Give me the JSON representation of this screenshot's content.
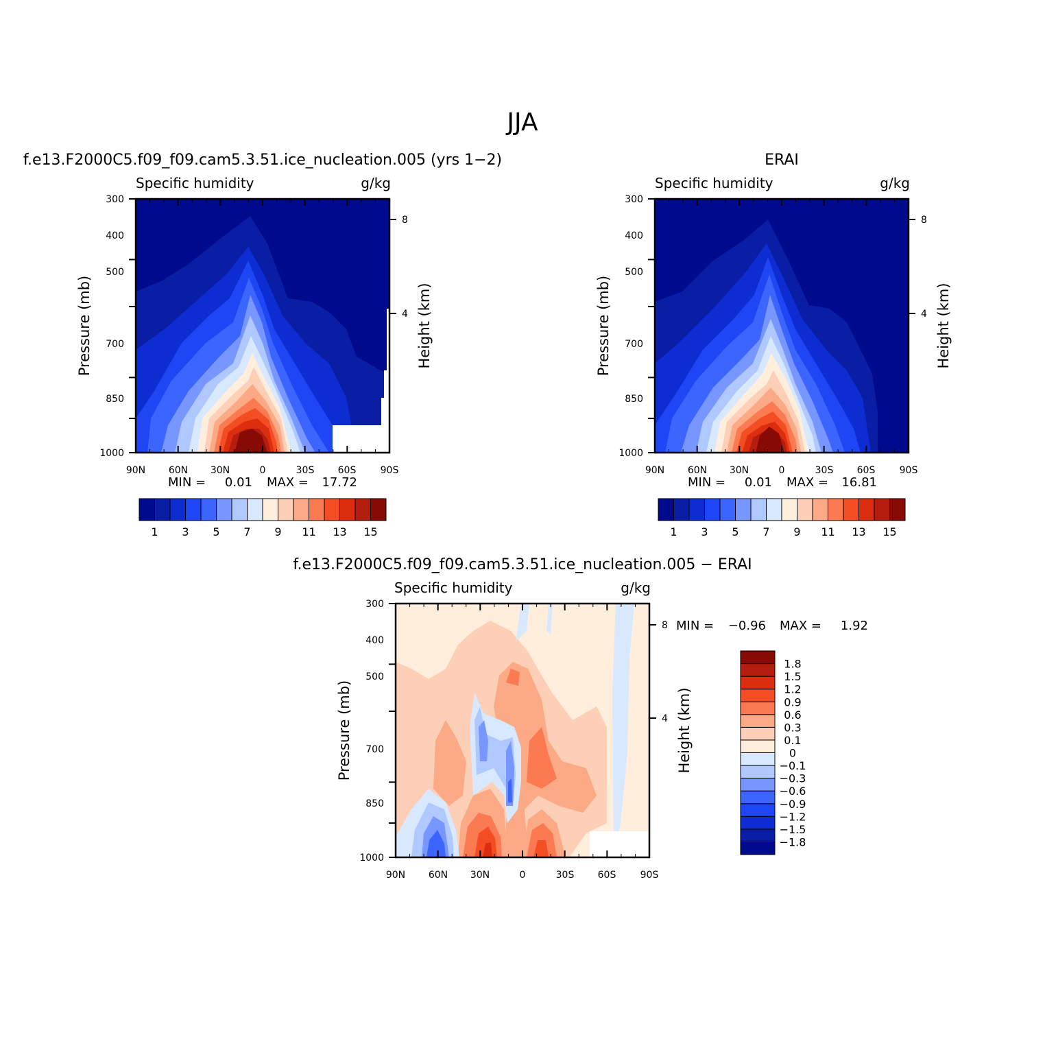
{
  "page_title": "JJA",
  "panels": [
    {
      "title": "f.e13.F2000C5.f09_f09.cam5.3.51.ice_nucleation.005 (yrs 1−2)",
      "left_label": "Specific humidity",
      "right_label": "g/kg",
      "min_label": "MIN =",
      "min_value": "0.01",
      "max_label": "MAX =",
      "max_value": "17.72"
    },
    {
      "title": "ERAI",
      "left_label": "Specific humidity",
      "right_label": "g/kg",
      "min_label": "MIN =",
      "min_value": "0.01",
      "max_label": "MAX =",
      "max_value": "16.81"
    },
    {
      "title": "f.e13.F2000C5.f09_f09.cam5.3.51.ice_nucleation.005 − ERAI",
      "left_label": "Specific humidity",
      "right_label": "g/kg",
      "min_label": "MIN =",
      "min_value": "−0.96",
      "max_label": "MAX =",
      "max_value": "1.92"
    }
  ],
  "axes": {
    "xlabels": [
      "90N",
      "60N",
      "30N",
      "0",
      "30S",
      "60S",
      "90S"
    ],
    "pressure_label": "Pressure (mb)",
    "pressure_ticks": [
      "300",
      "400",
      "500",
      "700",
      "850",
      "1000"
    ],
    "height_label": "Height (km)",
    "height_ticks": [
      "8",
      "4"
    ]
  },
  "colorbar_abs": {
    "colors": [
      "#000a8c",
      "#0a1ea5",
      "#0d2dd2",
      "#1e46f5",
      "#3c64ff",
      "#7896ff",
      "#afc8ff",
      "#d7e8ff",
      "#ffeedc",
      "#fdcfb7",
      "#fca985",
      "#fb7a52",
      "#f54d23",
      "#dc2d0f",
      "#b41e0f",
      "#870a05"
    ],
    "labels": [
      "1",
      "3",
      "5",
      "7",
      "9",
      "11",
      "13",
      "15"
    ]
  },
  "colorbar_diff": {
    "colors": [
      "#000a8c",
      "#0a1ea5",
      "#0d2dd2",
      "#1e46f5",
      "#3c64ff",
      "#7896ff",
      "#afc8ff",
      "#d7e8ff",
      "#ffeedc",
      "#fdcfb7",
      "#fca985",
      "#fb7a52",
      "#f54d23",
      "#dc2d0f",
      "#b41e0f",
      "#870a05"
    ],
    "labels": [
      "−1.8",
      "−1.5",
      "−1.2",
      "−0.9",
      "−0.6",
      "−0.3",
      "−0.1",
      "0",
      "0.1",
      "0.3",
      "0.6",
      "0.9",
      "1.2",
      "1.5",
      "1.8"
    ]
  },
  "chart_data": [
    {
      "type": "heatmap",
      "title": "f.e13.F2000C5.f09_f09.cam5.3.51.ice_nucleation.005 (yrs 1−2)",
      "xlabel": "",
      "ylabel": "Pressure (mb)",
      "y2label": "Height (km)",
      "x_ticks": [
        "90N",
        "60N",
        "30N",
        "0",
        "30S",
        "60S",
        "90S"
      ],
      "y_ticks": [
        300,
        400,
        500,
        700,
        850,
        1000
      ],
      "xlim": [
        90,
        -90
      ],
      "ylim": [
        1000,
        300
      ],
      "units": "g/kg",
      "min": 0.01,
      "max": 17.72,
      "peak": {
        "lat": 10,
        "lev": 1000,
        "value": 17.72
      },
      "contour_levels": [
        1,
        2,
        3,
        4,
        5,
        6,
        7,
        8,
        9,
        10,
        11,
        12,
        13,
        14,
        15
      ]
    },
    {
      "type": "heatmap",
      "title": "ERAI",
      "xlabel": "",
      "ylabel": "Pressure (mb)",
      "y2label": "Height (km)",
      "x_ticks": [
        "90N",
        "60N",
        "30N",
        "0",
        "30S",
        "60S",
        "90S"
      ],
      "y_ticks": [
        300,
        400,
        500,
        700,
        850,
        1000
      ],
      "xlim": [
        90,
        -90
      ],
      "ylim": [
        1000,
        300
      ],
      "units": "g/kg",
      "min": 0.01,
      "max": 16.81,
      "peak": {
        "lat": 8,
        "lev": 1000,
        "value": 16.81
      },
      "contour_levels": [
        1,
        2,
        3,
        4,
        5,
        6,
        7,
        8,
        9,
        10,
        11,
        12,
        13,
        14,
        15
      ]
    },
    {
      "type": "heatmap",
      "title": "f.e13.F2000C5.f09_f09.cam5.3.51.ice_nucleation.005 − ERAI",
      "xlabel": "",
      "ylabel": "Pressure (mb)",
      "y2label": "Height (km)",
      "x_ticks": [
        "90N",
        "60N",
        "30N",
        "0",
        "30S",
        "60S",
        "90S"
      ],
      "y_ticks": [
        300,
        400,
        500,
        700,
        850,
        1000
      ],
      "xlim": [
        90,
        -90
      ],
      "ylim": [
        1000,
        300
      ],
      "units": "g/kg",
      "min": -0.96,
      "max": 1.92,
      "contour_levels": [
        -1.8,
        -1.5,
        -1.2,
        -0.9,
        -0.6,
        -0.3,
        -0.1,
        0,
        0.1,
        0.3,
        0.6,
        0.9,
        1.2,
        1.5,
        1.8
      ]
    }
  ]
}
